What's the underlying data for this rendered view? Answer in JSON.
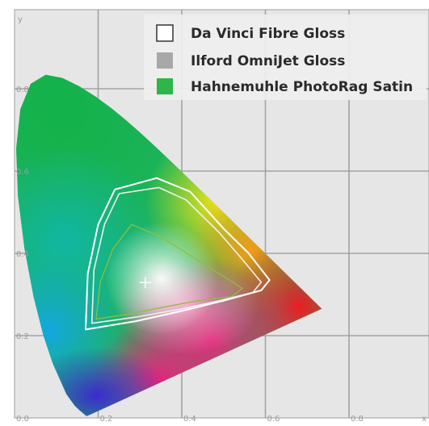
{
  "chart_data": {
    "type": "scatter",
    "title": "",
    "xlabel": "x",
    "ylabel": "y",
    "xlim": [
      0.0,
      0.9
    ],
    "ylim": [
      0.0,
      0.9
    ],
    "x_tick_labels": [
      "0.0",
      "0.2",
      "0.4",
      "0.6",
      "0.8"
    ],
    "y_tick_labels": [
      "0.2",
      "0.4",
      "0.6",
      "0.8"
    ],
    "grid": true,
    "legend_position": "top-right",
    "colors": {
      "background": "#e6e6e6",
      "grid": "#a3a3a3"
    },
    "series": [
      {
        "name": "Da Vinci Fibre Gloss",
        "legend_color": "#ffffff",
        "line_color": "#ffffff",
        "points": [
          [
            0.34,
            0.583
          ],
          [
            0.42,
            0.55
          ],
          [
            0.5,
            0.46
          ],
          [
            0.56,
            0.4
          ],
          [
            0.61,
            0.335
          ],
          [
            0.59,
            0.31
          ],
          [
            0.5,
            0.285
          ],
          [
            0.4,
            0.26
          ],
          [
            0.29,
            0.235
          ],
          [
            0.17,
            0.215
          ],
          [
            0.175,
            0.35
          ],
          [
            0.2,
            0.47
          ],
          [
            0.24,
            0.555
          ]
        ]
      },
      {
        "name": "Ilford OmniJet Gloss",
        "legend_color": "#a8a8a8",
        "line_color": "#f0f0f0",
        "points": [
          [
            0.345,
            0.56
          ],
          [
            0.41,
            0.53
          ],
          [
            0.49,
            0.45
          ],
          [
            0.545,
            0.385
          ],
          [
            0.59,
            0.33
          ],
          [
            0.57,
            0.305
          ],
          [
            0.49,
            0.285
          ],
          [
            0.4,
            0.265
          ],
          [
            0.29,
            0.245
          ],
          [
            0.185,
            0.23
          ],
          [
            0.19,
            0.36
          ],
          [
            0.215,
            0.47
          ],
          [
            0.25,
            0.545
          ]
        ]
      },
      {
        "name": "Hahnemuhle PhotoRag Satin",
        "legend_color": "#2fb648",
        "line_color": "#8fbf3f",
        "points": [
          [
            0.28,
            0.47
          ],
          [
            0.35,
            0.44
          ],
          [
            0.42,
            0.395
          ],
          [
            0.49,
            0.35
          ],
          [
            0.545,
            0.315
          ],
          [
            0.52,
            0.295
          ],
          [
            0.44,
            0.285
          ],
          [
            0.36,
            0.27
          ],
          [
            0.27,
            0.252
          ],
          [
            0.195,
            0.24
          ],
          [
            0.205,
            0.33
          ],
          [
            0.235,
            0.41
          ]
        ]
      }
    ],
    "white_point": [
      0.3127,
      0.329
    ]
  }
}
